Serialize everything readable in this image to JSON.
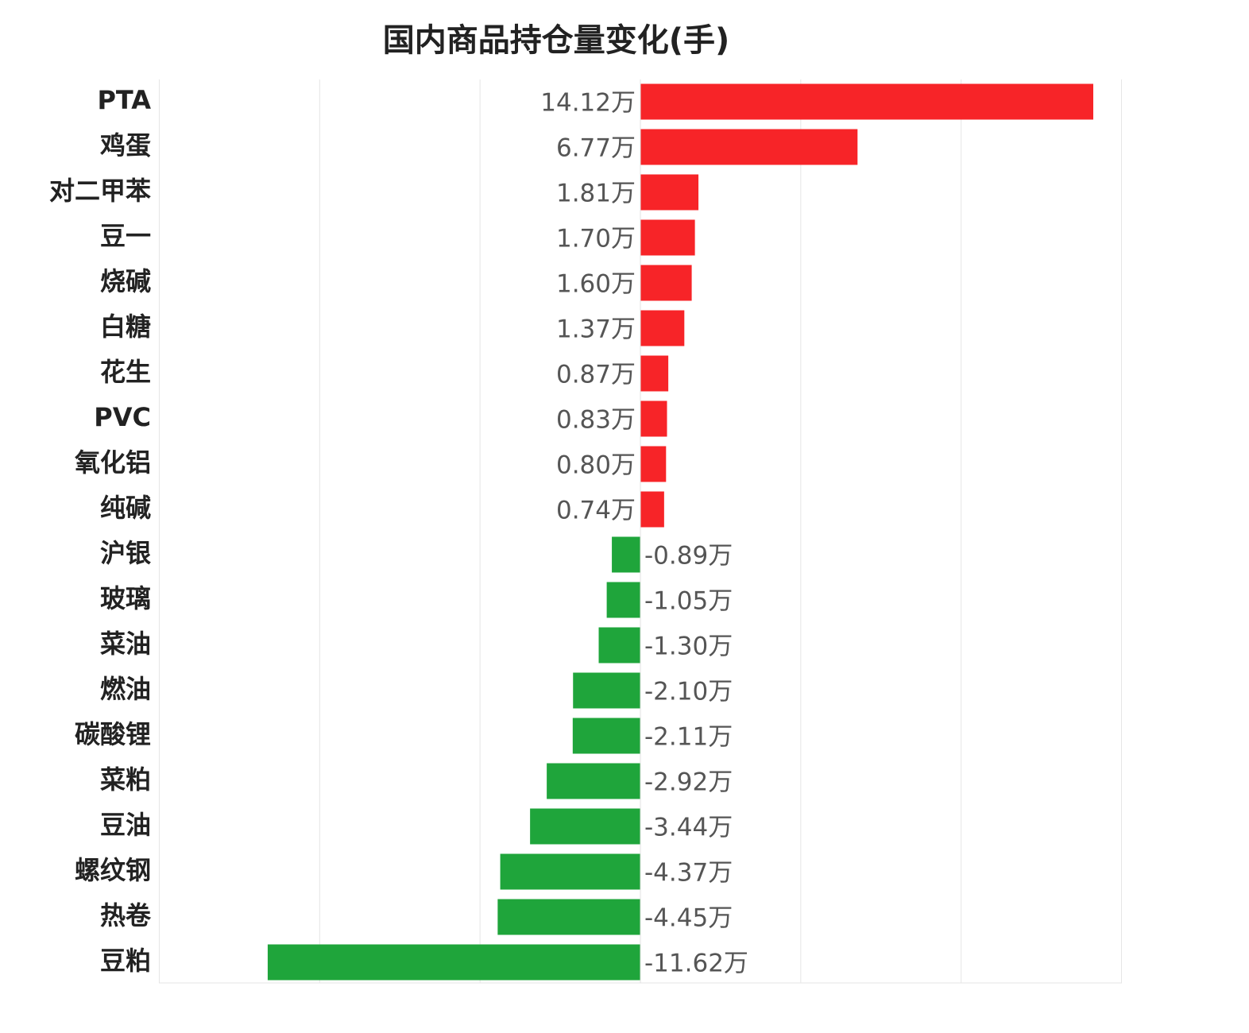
{
  "chart_data": {
    "type": "bar",
    "orientation": "horizontal",
    "title": "国内商品持仓量变化(手)",
    "xlabel": "",
    "ylabel": "",
    "xlim": [
      -15,
      15
    ],
    "grid": true,
    "unit_suffix": "万",
    "positive_color": "#f72428",
    "negative_color": "#1fa53b",
    "categories": [
      "PTA",
      "鸡蛋",
      "对二甲苯",
      "豆一",
      "烧碱",
      "白糖",
      "花生",
      "PVC",
      "氧化铝",
      "纯碱",
      "沪银",
      "玻璃",
      "菜油",
      "燃油",
      "碳酸锂",
      "菜粕",
      "豆油",
      "螺纹钢",
      "热卷",
      "豆粕"
    ],
    "values": [
      14.12,
      6.77,
      1.81,
      1.7,
      1.6,
      1.37,
      0.87,
      0.83,
      0.8,
      0.74,
      -0.89,
      -1.05,
      -1.3,
      -2.1,
      -2.11,
      -2.92,
      -3.44,
      -4.37,
      -4.45,
      -11.62
    ],
    "data_labels": [
      "14.12万",
      "6.77万",
      "1.81万",
      "1.70万",
      "1.60万",
      "1.37万",
      "0.87万",
      "0.83万",
      "0.80万",
      "0.74万",
      "-0.89万",
      "-1.05万",
      "-1.30万",
      "-2.10万",
      "-2.11万",
      "-2.92万",
      "-3.44万",
      "-4.37万",
      "-4.45万",
      "-11.62万"
    ]
  }
}
